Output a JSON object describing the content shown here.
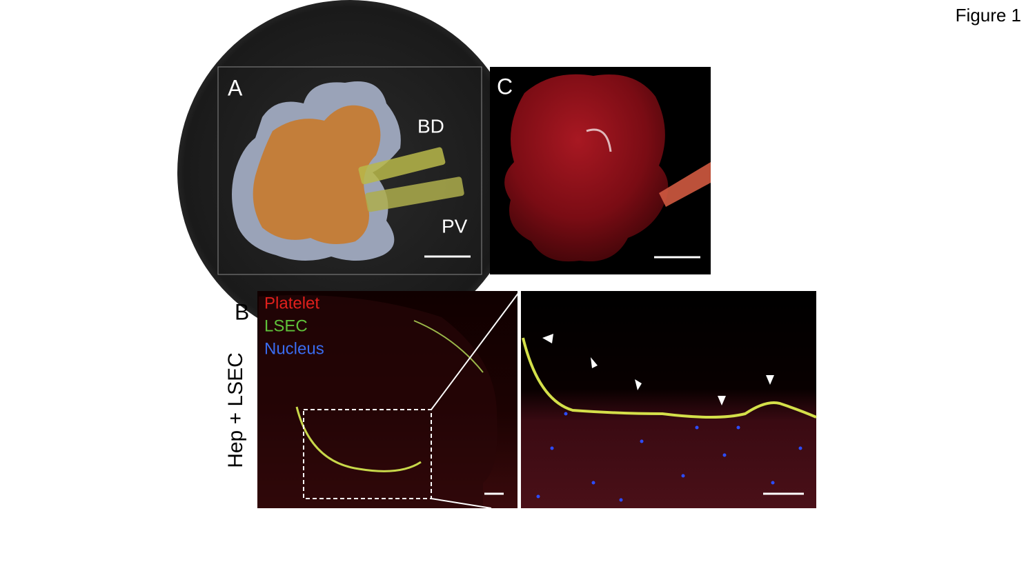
{
  "figure_label": "Figure 1",
  "panels": [
    {
      "label": "A",
      "annotations": [
        "BD",
        "PV"
      ]
    },
    {
      "label": "C"
    },
    {
      "label": "B",
      "row_label": "Hep + LSEC",
      "legend": [
        {
          "name": "Platelet",
          "color": "#e0201c"
        },
        {
          "name": "LSEC",
          "color": "#5fc23a"
        },
        {
          "name": "Nucleus",
          "color": "#3a6cf0"
        }
      ]
    }
  ]
}
